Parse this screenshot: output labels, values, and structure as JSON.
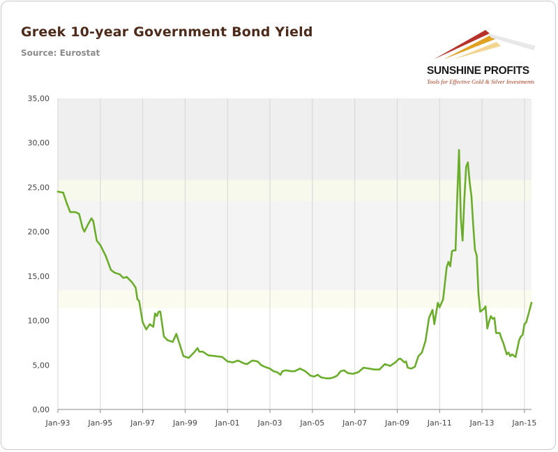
{
  "header": {
    "title": "Greek 10-year Government Bond Yield",
    "source": "Source: Eurostat"
  },
  "logo": {
    "name": "SUNSHINE PROFITS",
    "tagline": "Tools for Effective Gold & Silver Investments",
    "colors": [
      "#b8322a",
      "#e0a020",
      "#f2d590"
    ]
  },
  "chart_data": {
    "type": "line",
    "title": "Greek 10-year Government Bond Yield",
    "xlabel": "",
    "ylabel": "",
    "ylim": [
      0,
      35
    ],
    "y_ticks": [
      "0,00",
      "5,00",
      "10,00",
      "15,00",
      "20,00",
      "25,00",
      "30,00",
      "35,00"
    ],
    "x_ticks": [
      "Jan-93",
      "Jan-95",
      "Jan-97",
      "Jan-99",
      "Jan-01",
      "Jan-03",
      "Jan-05",
      "Jan-07",
      "Jan-09",
      "Jan-11",
      "Jan-13",
      "Jan-15"
    ],
    "x_range": [
      "1993-01",
      "2015-05"
    ],
    "grid": "vertical",
    "legend": "none",
    "line_color": "#6aad2a",
    "series": [
      {
        "points": [
          [
            "1993-01",
            24.5
          ],
          [
            "1993-04",
            24.4
          ],
          [
            "1993-06",
            23.2
          ],
          [
            "1993-08",
            22.2
          ],
          [
            "1993-11",
            22.2
          ],
          [
            "1994-01",
            22.0
          ],
          [
            "1994-03",
            20.4
          ],
          [
            "1994-04",
            20.0
          ],
          [
            "1994-06",
            20.8
          ],
          [
            "1994-08",
            21.5
          ],
          [
            "1994-09",
            21.2
          ],
          [
            "1994-11",
            19.0
          ],
          [
            "1995-01",
            18.5
          ],
          [
            "1995-04",
            17.3
          ],
          [
            "1995-07",
            15.7
          ],
          [
            "1995-09",
            15.4
          ],
          [
            "1995-12",
            15.2
          ],
          [
            "1996-02",
            14.8
          ],
          [
            "1996-04",
            14.9
          ],
          [
            "1996-07",
            14.3
          ],
          [
            "1996-09",
            13.7
          ],
          [
            "1996-10",
            12.4
          ],
          [
            "1996-11",
            12.2
          ],
          [
            "1997-01",
            9.8
          ],
          [
            "1997-03",
            9.0
          ],
          [
            "1997-05",
            9.6
          ],
          [
            "1997-07",
            9.3
          ],
          [
            "1997-08",
            10.8
          ],
          [
            "1997-09",
            10.5
          ],
          [
            "1997-10",
            11.0
          ],
          [
            "1997-11",
            11.0
          ],
          [
            "1998-01",
            8.2
          ],
          [
            "1998-03",
            7.8
          ],
          [
            "1998-06",
            7.6
          ],
          [
            "1998-08",
            8.5
          ],
          [
            "1998-10",
            7.3
          ],
          [
            "1998-12",
            6.0
          ],
          [
            "1999-03",
            5.8
          ],
          [
            "1999-06",
            6.4
          ],
          [
            "1999-08",
            6.9
          ],
          [
            "1999-09",
            6.5
          ],
          [
            "1999-11",
            6.5
          ],
          [
            "2000-02",
            6.1
          ],
          [
            "2000-06",
            6.0
          ],
          [
            "2000-10",
            5.9
          ],
          [
            "2001-01",
            5.4
          ],
          [
            "2001-04",
            5.3
          ],
          [
            "2001-07",
            5.5
          ],
          [
            "2001-10",
            5.2
          ],
          [
            "2001-12",
            5.1
          ],
          [
            "2002-03",
            5.5
          ],
          [
            "2002-06",
            5.4
          ],
          [
            "2002-08",
            5.0
          ],
          [
            "2002-10",
            4.8
          ],
          [
            "2003-01",
            4.6
          ],
          [
            "2003-03",
            4.3
          ],
          [
            "2003-05",
            4.2
          ],
          [
            "2003-07",
            3.9
          ],
          [
            "2003-08",
            4.3
          ],
          [
            "2003-10",
            4.4
          ],
          [
            "2004-01",
            4.3
          ],
          [
            "2004-03",
            4.3
          ],
          [
            "2004-06",
            4.6
          ],
          [
            "2004-09",
            4.3
          ],
          [
            "2004-12",
            3.8
          ],
          [
            "2005-02",
            3.7
          ],
          [
            "2005-04",
            3.9
          ],
          [
            "2005-06",
            3.6
          ],
          [
            "2005-09",
            3.5
          ],
          [
            "2005-11",
            3.5
          ],
          [
            "2006-01",
            3.6
          ],
          [
            "2006-03",
            3.8
          ],
          [
            "2006-05",
            4.3
          ],
          [
            "2006-07",
            4.4
          ],
          [
            "2006-09",
            4.1
          ],
          [
            "2006-12",
            4.0
          ],
          [
            "2007-03",
            4.2
          ],
          [
            "2007-06",
            4.7
          ],
          [
            "2007-09",
            4.6
          ],
          [
            "2007-12",
            4.5
          ],
          [
            "2008-03",
            4.5
          ],
          [
            "2008-06",
            5.1
          ],
          [
            "2008-09",
            4.9
          ],
          [
            "2008-12",
            5.3
          ],
          [
            "2009-02",
            5.7
          ],
          [
            "2009-03",
            5.7
          ],
          [
            "2009-05",
            5.3
          ],
          [
            "2009-06",
            5.4
          ],
          [
            "2009-07",
            4.7
          ],
          [
            "2009-09",
            4.6
          ],
          [
            "2009-11",
            4.8
          ],
          [
            "2010-01",
            6.0
          ],
          [
            "2010-03",
            6.4
          ],
          [
            "2010-05",
            7.7
          ],
          [
            "2010-07",
            10.3
          ],
          [
            "2010-09",
            11.2
          ],
          [
            "2010-10",
            9.6
          ],
          [
            "2010-12",
            12.0
          ],
          [
            "2011-01",
            11.5
          ],
          [
            "2011-03",
            12.4
          ],
          [
            "2011-05",
            16.0
          ],
          [
            "2011-06",
            16.6
          ],
          [
            "2011-07",
            16.1
          ],
          [
            "2011-08",
            17.8
          ],
          [
            "2011-09",
            17.9
          ],
          [
            "2011-10",
            17.9
          ],
          [
            "2011-11",
            24.0
          ],
          [
            "2011-12",
            29.2
          ],
          [
            "2012-01",
            21.5
          ],
          [
            "2012-02",
            19.0
          ],
          [
            "2012-03",
            23.6
          ],
          [
            "2012-04",
            27.3
          ],
          [
            "2012-05",
            27.8
          ],
          [
            "2012-06",
            25.6
          ],
          [
            "2012-07",
            24.0
          ],
          [
            "2012-08",
            20.8
          ],
          [
            "2012-09",
            18.0
          ],
          [
            "2012-10",
            17.3
          ],
          [
            "2012-11",
            13.0
          ],
          [
            "2012-12",
            11.0
          ],
          [
            "2013-02",
            11.3
          ],
          [
            "2013-03",
            11.6
          ],
          [
            "2013-04",
            9.1
          ],
          [
            "2013-05",
            9.9
          ],
          [
            "2013-06",
            10.5
          ],
          [
            "2013-07",
            10.2
          ],
          [
            "2013-08",
            10.3
          ],
          [
            "2013-09",
            8.6
          ],
          [
            "2013-11",
            8.6
          ],
          [
            "2013-12",
            8.0
          ],
          [
            "2014-01",
            7.5
          ],
          [
            "2014-03",
            6.2
          ],
          [
            "2014-04",
            6.4
          ],
          [
            "2014-05",
            6.0
          ],
          [
            "2014-06",
            6.2
          ],
          [
            "2014-08",
            5.9
          ],
          [
            "2014-10",
            7.8
          ],
          [
            "2014-11",
            8.2
          ],
          [
            "2014-12",
            8.4
          ],
          [
            "2015-01",
            9.6
          ],
          [
            "2015-02",
            9.8
          ],
          [
            "2015-03",
            10.5
          ],
          [
            "2015-05",
            12.0
          ]
        ]
      }
    ]
  }
}
